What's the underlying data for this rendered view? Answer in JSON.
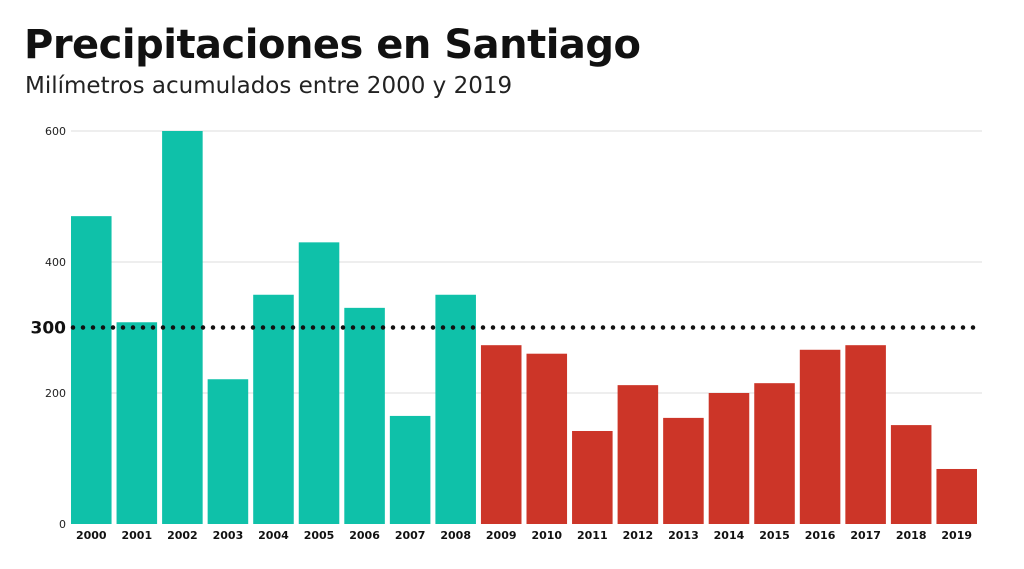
{
  "chart_data": {
    "type": "bar",
    "title": "Precipitaciones en Santiago",
    "subtitle": "Milímetros acumulados entre 2000 y 2019",
    "xlabel": "",
    "ylabel": "",
    "categories": [
      "2000",
      "2001",
      "2002",
      "2003",
      "2004",
      "2005",
      "2006",
      "2007",
      "2008",
      "2009",
      "2010",
      "2011",
      "2012",
      "2013",
      "2014",
      "2015",
      "2016",
      "2017",
      "2018",
      "2019"
    ],
    "values": [
      470,
      308,
      600,
      221,
      350,
      430,
      330,
      165,
      350,
      273,
      260,
      142,
      212,
      162,
      200,
      215,
      266,
      273,
      151,
      84
    ],
    "ylim": [
      0,
      600
    ],
    "yticks": [
      "0",
      "200",
      "400",
      "600"
    ],
    "reference_line": {
      "value": 300,
      "label": "300",
      "style": "dotted"
    },
    "grid": true,
    "colors": {
      "above": "#0fc1a9",
      "below": "#cc3528",
      "split_after": "2008"
    }
  }
}
